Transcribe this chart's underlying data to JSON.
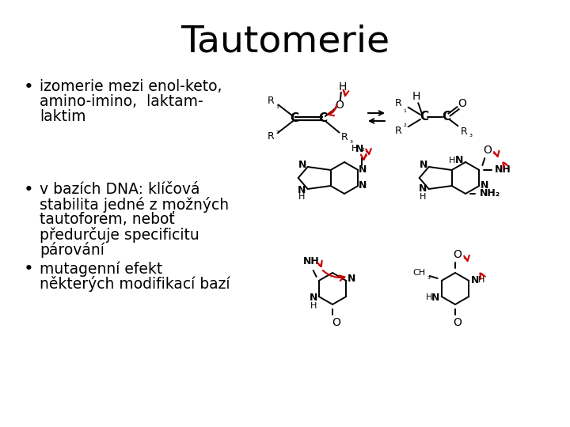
{
  "title": "Tautomerie",
  "title_fontsize": 34,
  "title_font": "sans-serif",
  "bg_color": "#ffffff",
  "text_color": "#000000",
  "bullet1_lines": [
    "izomerie mezi enol-keto,",
    "amino-imino,  laktam-",
    "laktim"
  ],
  "bullet2_lines": [
    "v bazích DNA: klíčová",
    "stabilita jedné z možných",
    "tautoforem, neboť",
    "předurčuje specificitu",
    "párování"
  ],
  "bullet3_lines": [
    "mutagenní efekt",
    "některých modifikací bazí"
  ],
  "text_fontsize": 13.5,
  "red_color": "#cc0000",
  "line_color": "#000000"
}
